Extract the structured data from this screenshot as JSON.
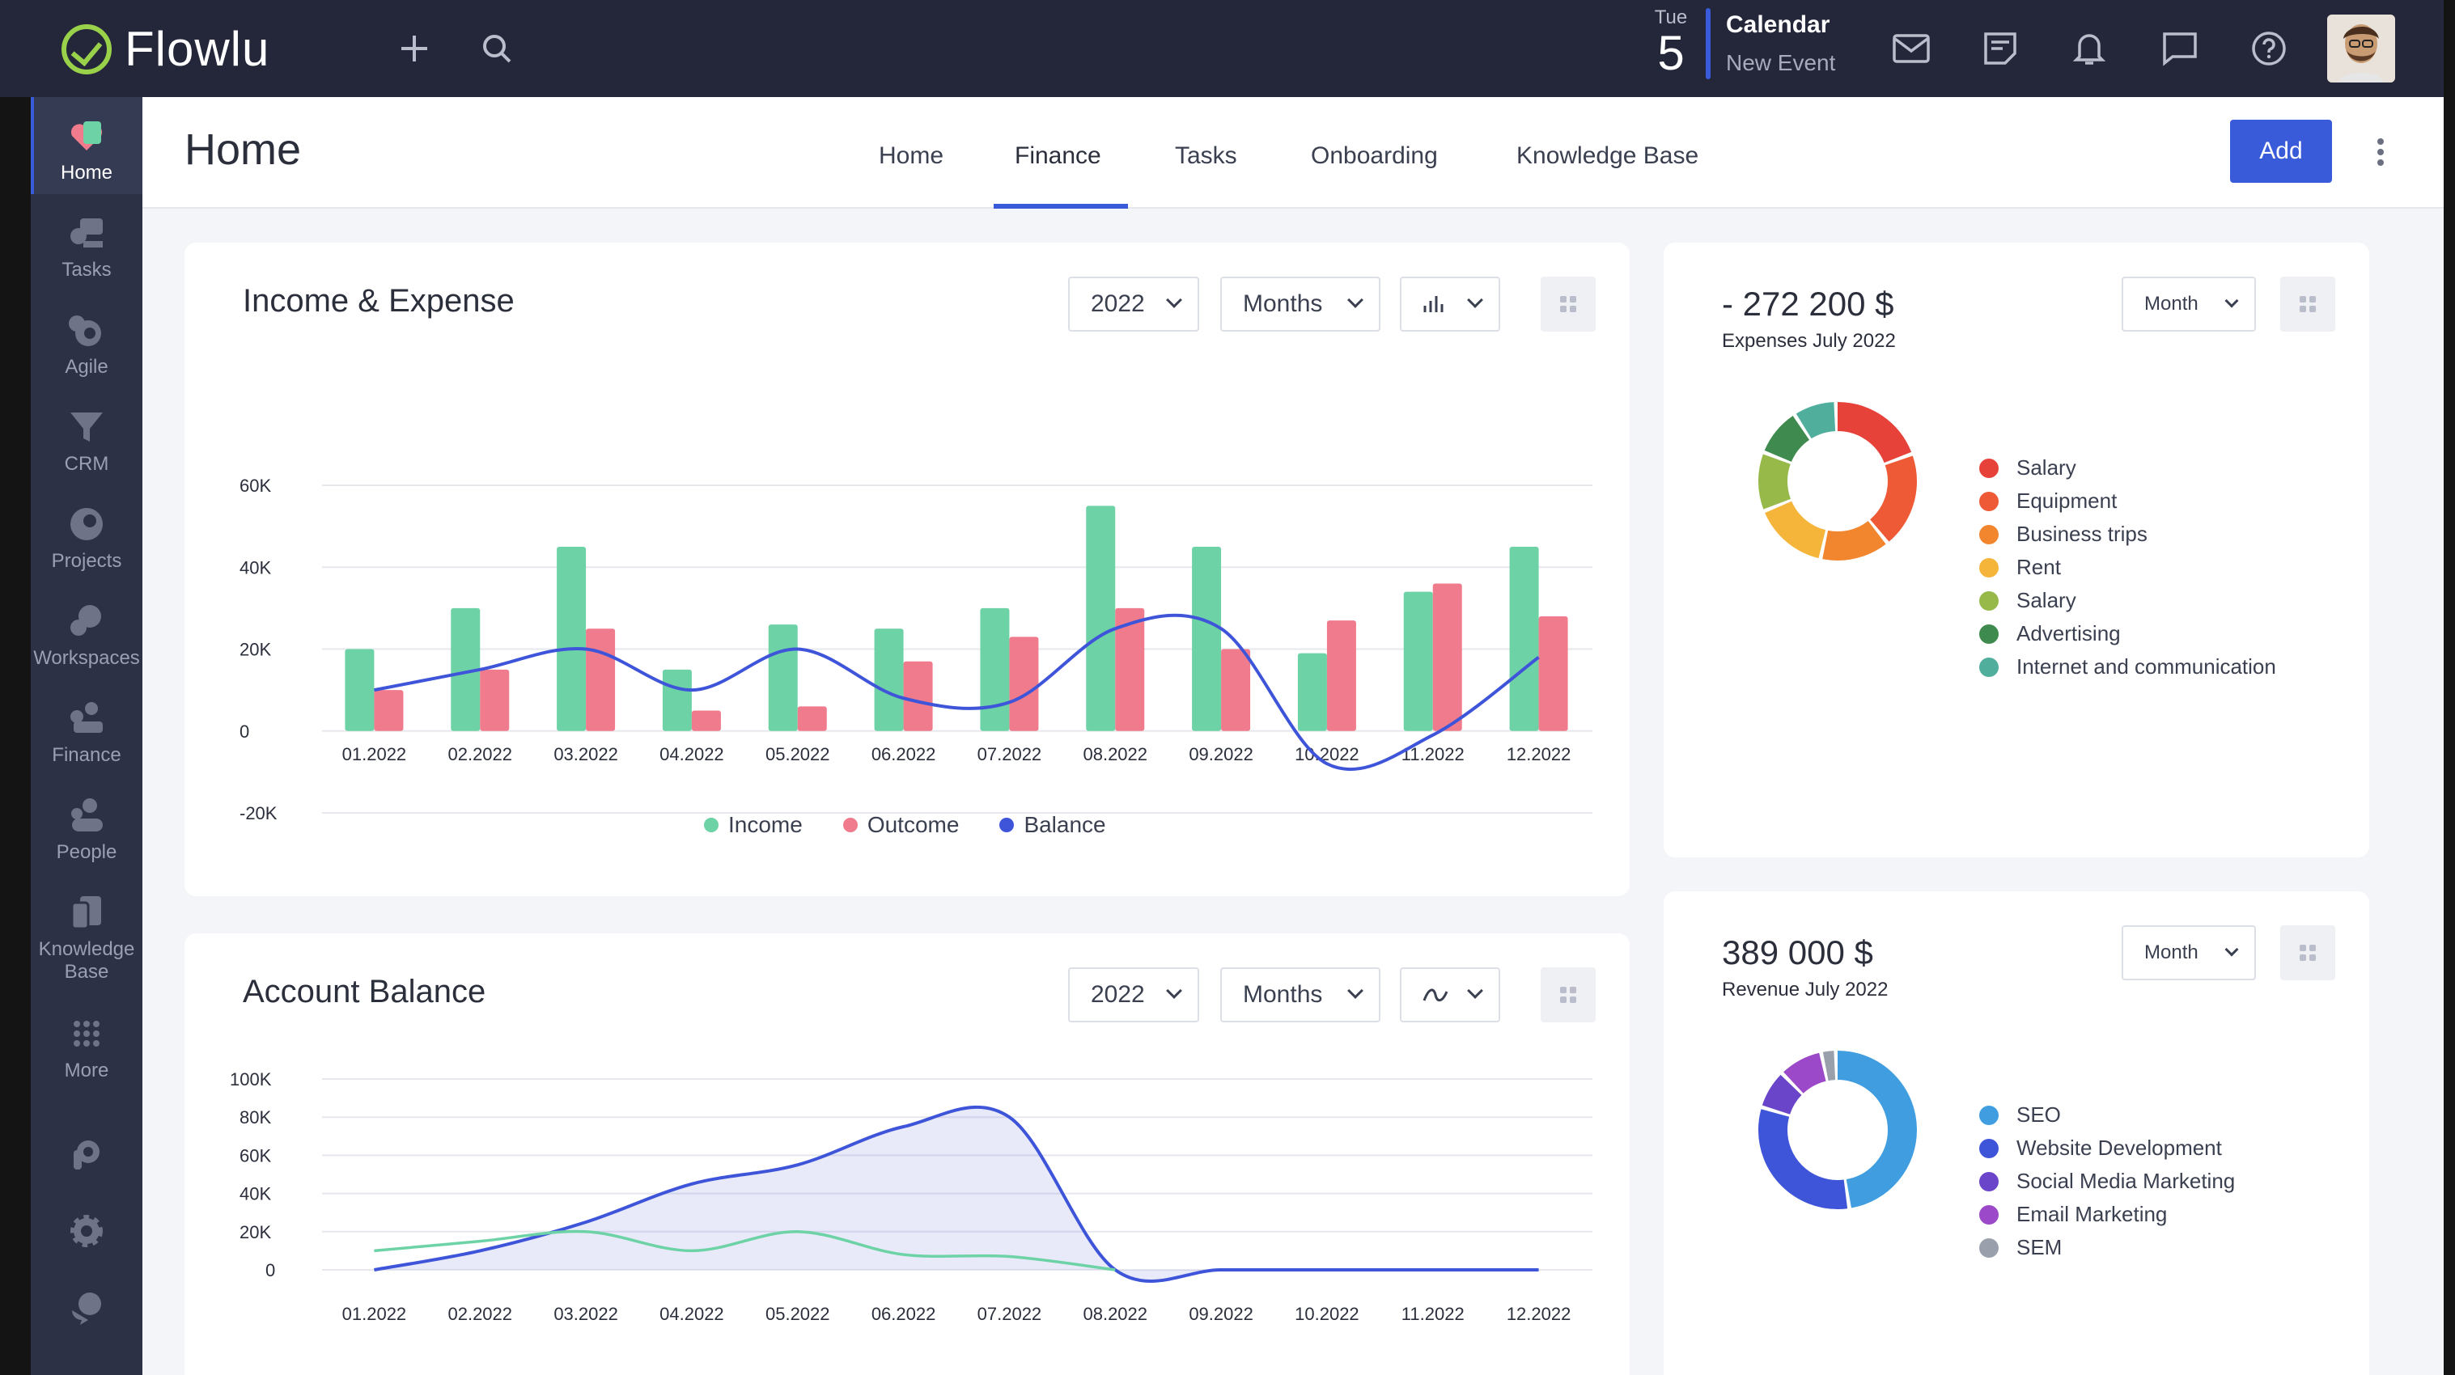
{
  "app": {
    "name": "Flowlu"
  },
  "topbar": {
    "date_dow": "Tue",
    "date_num": "5",
    "calendar_title": "Calendar",
    "calendar_sub": "New Event"
  },
  "sidebar": {
    "items": [
      {
        "label": "Home",
        "icon": "home-icon"
      },
      {
        "label": "Tasks",
        "icon": "tasks-icon"
      },
      {
        "label": "Agile",
        "icon": "agile-icon"
      },
      {
        "label": "CRM",
        "icon": "crm-icon"
      },
      {
        "label": "Projects",
        "icon": "projects-icon"
      },
      {
        "label": "Workspaces",
        "icon": "workspaces-icon"
      },
      {
        "label": "Finance",
        "icon": "finance-icon"
      },
      {
        "label": "People",
        "icon": "people-icon"
      },
      {
        "label": "Knowledge",
        "label2": "Base",
        "icon": "knowledge-base-icon"
      },
      {
        "label": "More",
        "icon": "more-icon"
      }
    ]
  },
  "header": {
    "title": "Home",
    "tabs": [
      "Home",
      "Finance",
      "Tasks",
      "Onboarding",
      "Knowledge Base"
    ],
    "active_tab": "Finance",
    "add_label": "Add"
  },
  "colors": {
    "accent": "#3a5bd9",
    "income": "#6dd3a6",
    "outcome": "#f07b8c",
    "balance": "#3f55d9"
  },
  "income_expense": {
    "title": "Income & Expense",
    "year": "2022",
    "period": "Months",
    "legend": [
      "Income",
      "Outcome",
      "Balance"
    ]
  },
  "account_balance": {
    "title": "Account Balance",
    "year": "2022",
    "period": "Months"
  },
  "expenses": {
    "value": "- 272 200 $",
    "label": "Expenses July 2022",
    "period": "Month",
    "items": [
      {
        "name": "Salary",
        "color": "#e6423a"
      },
      {
        "name": "Equipment",
        "color": "#ee5a35"
      },
      {
        "name": "Business trips",
        "color": "#f2862f"
      },
      {
        "name": "Rent",
        "color": "#f5b43a"
      },
      {
        "name": "Salary",
        "color": "#96b94a"
      },
      {
        "name": "Advertising",
        "color": "#3f8a4e"
      },
      {
        "name": "Internet and communication",
        "color": "#4fae9c"
      }
    ]
  },
  "revenue": {
    "value": "389 000 $",
    "label": "Revenue July 2022",
    "period": "Month",
    "items": [
      {
        "name": "SEO",
        "color": "#3f9de0"
      },
      {
        "name": "Website Development",
        "color": "#3f55d9"
      },
      {
        "name": "Social Media Marketing",
        "color": "#6a45c9"
      },
      {
        "name": "Email Marketing",
        "color": "#9b49c8"
      },
      {
        "name": "SEM",
        "color": "#9aa0ab"
      }
    ]
  },
  "chart_data": [
    {
      "type": "bar",
      "title": "Income & Expense",
      "categories": [
        "01.2022",
        "02.2022",
        "03.2022",
        "04.2022",
        "05.2022",
        "06.2022",
        "07.2022",
        "08.2022",
        "09.2022",
        "10.2022",
        "11.2022",
        "12.2022"
      ],
      "yticks": [
        "60K",
        "40K",
        "20K",
        "0",
        "-20K"
      ],
      "ylim": [
        -20000,
        60000
      ],
      "series": [
        {
          "name": "Income",
          "type": "bar",
          "values": [
            20000,
            30000,
            45000,
            15000,
            26000,
            25000,
            30000,
            55000,
            45000,
            19000,
            34000,
            45000
          ]
        },
        {
          "name": "Outcome",
          "type": "bar",
          "values": [
            10000,
            15000,
            25000,
            5000,
            6000,
            17000,
            23000,
            30000,
            20000,
            27000,
            36000,
            28000
          ]
        },
        {
          "name": "Balance",
          "type": "line",
          "values": [
            10000,
            15000,
            20000,
            10000,
            20000,
            8000,
            7000,
            25000,
            25000,
            -8000,
            -1000,
            18000
          ]
        }
      ]
    },
    {
      "type": "area",
      "title": "Account Balance",
      "categories": [
        "01.2022",
        "02.2022",
        "03.2022",
        "04.2022",
        "05.2022",
        "06.2022",
        "07.2022",
        "08.2022",
        "09.2022",
        "10.2022",
        "11.2022",
        "12.2022"
      ],
      "yticks": [
        "100K",
        "80K",
        "60K",
        "40K",
        "20K",
        "0"
      ],
      "ylim": [
        0,
        100000
      ],
      "series": [
        {
          "name": "Balance",
          "values": [
            0,
            10000,
            25000,
            45000,
            55000,
            75000,
            80000,
            0,
            0,
            0,
            0,
            0
          ]
        },
        {
          "name": "Income",
          "values": [
            10000,
            15000,
            20000,
            10000,
            20000,
            8000,
            7000,
            0,
            0,
            0,
            0,
            0
          ]
        }
      ]
    },
    {
      "type": "pie",
      "title": "- 272 200 $",
      "labels": [
        "Salary",
        "Equipment",
        "Business trips",
        "Rent",
        "Salary",
        "Advertising",
        "Internet and communication"
      ],
      "values": [
        18,
        18,
        13,
        14,
        11,
        9,
        8
      ]
    },
    {
      "type": "pie",
      "title": "389 000 $",
      "labels": [
        "SEO",
        "Website Development",
        "Social Media Marketing",
        "Email Marketing",
        "SEM"
      ],
      "values": [
        48,
        32,
        8,
        9,
        3
      ]
    }
  ]
}
